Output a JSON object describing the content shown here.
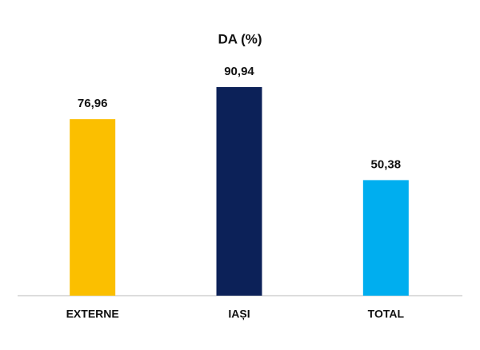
{
  "chart_data": {
    "type": "bar",
    "title": "DA (%)",
    "categories": [
      "EXTERNE",
      "IAȘI",
      "TOTAL"
    ],
    "values": [
      76.96,
      90.94,
      50.38
    ],
    "value_labels": [
      "76,96",
      "90,94",
      "50,38"
    ],
    "colors": [
      "#fbbf00",
      "#0c2158",
      "#00aeef"
    ],
    "ylim": [
      0,
      100
    ]
  }
}
